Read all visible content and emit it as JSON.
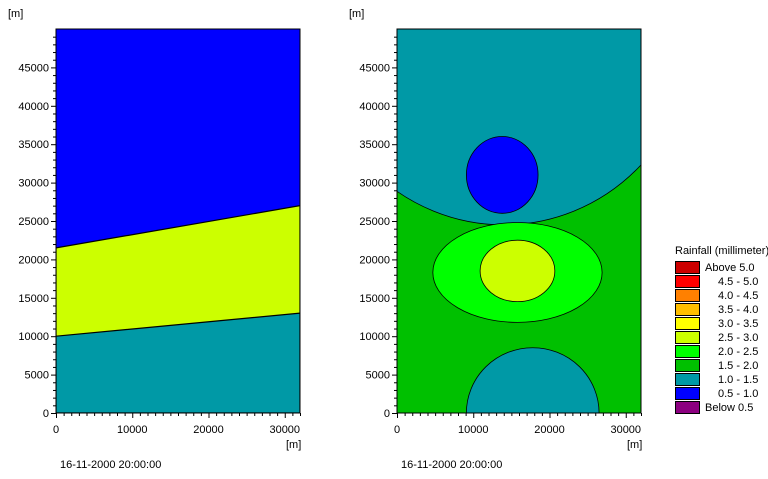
{
  "colors": {
    "above_5_0": "#cc0000",
    "4_5_5_0": "#ff0000",
    "4_0_4_5": "#ff8000",
    "3_5_4_0": "#ffbf00",
    "3_0_3_5": "#ffff00",
    "2_5_3_0": "#ccff00",
    "2_0_2_5": "#00ff00",
    "1_5_2_0": "#00c000",
    "1_0_1_5": "#0099a6",
    "0_5_1_0": "#0000ff",
    "below_0_5": "#8c0080"
  },
  "chart_data": [
    {
      "type": "contour",
      "xunit": "[m]",
      "yunit": "[m]",
      "xlim": [
        0,
        32000
      ],
      "ylim": [
        0,
        50000
      ],
      "xticks": [
        "0",
        "10000",
        "20000",
        "30000"
      ],
      "yticks": [
        "0",
        "5000",
        "10000",
        "15000",
        "20000",
        "25000",
        "30000",
        "35000",
        "40000",
        "45000"
      ],
      "timestamp": "16-11-2000 20:00:00",
      "regions": [
        {
          "class": "1.0 - 1.5",
          "y_top_at_x0": 10000,
          "y_top_at_xmax": 13000
        },
        {
          "class": "2.5 - 3.0",
          "y_top_at_x0": 21500,
          "y_top_at_xmax": 27000
        },
        {
          "class": "0.5 - 1.0",
          "y_top_at_x0": 50000,
          "y_top_at_xmax": 50000
        }
      ]
    },
    {
      "type": "contour",
      "xunit": "[m]",
      "yunit": "[m]",
      "xlim": [
        0,
        32000
      ],
      "ylim": [
        0,
        50000
      ],
      "xticks": [
        "0",
        "10000",
        "20000",
        "30000"
      ],
      "yticks": [
        "0",
        "5000",
        "10000",
        "15000",
        "20000",
        "25000",
        "30000",
        "35000",
        "40000",
        "45000"
      ],
      "timestamp": "16-11-2000 20:00:00",
      "background_class": "1.5 - 2.0",
      "regions": [
        {
          "class": "1.0 - 1.5",
          "shape": "top-bowl",
          "cx": 14000,
          "cy": 50000,
          "rx": 25000,
          "ry": 25500
        },
        {
          "class": "0.5 - 1.0",
          "shape": "ellipse",
          "cx": 13800,
          "cy": 31000,
          "rx": 4700,
          "ry": 5000
        },
        {
          "class": "2.0 - 2.5",
          "shape": "ellipse",
          "cx": 15800,
          "cy": 18300,
          "rx": 11100,
          "ry": 6500
        },
        {
          "class": "2.5 - 3.0",
          "shape": "ellipse",
          "cx": 15800,
          "cy": 18500,
          "rx": 4900,
          "ry": 4000
        },
        {
          "class": "1.0 - 1.5",
          "shape": "bottom-dome",
          "cx": 17800,
          "cy": 0,
          "rx": 8700,
          "ry": 8500
        }
      ]
    }
  ],
  "legend": {
    "title": "Rainfall (millimeter)",
    "items": [
      {
        "label": "Above 5.0",
        "color_key": "above_5_0"
      },
      {
        "label": "4.5 - 5.0",
        "color_key": "4_5_5_0"
      },
      {
        "label": "4.0 - 4.5",
        "color_key": "4_0_4_5"
      },
      {
        "label": "3.5 - 4.0",
        "color_key": "3_5_4_0"
      },
      {
        "label": "3.0 - 3.5",
        "color_key": "3_0_3_5"
      },
      {
        "label": "2.5 - 3.0",
        "color_key": "2_5_3_0"
      },
      {
        "label": "2.0 - 2.5",
        "color_key": "2_0_2_5"
      },
      {
        "label": "1.5 - 2.0",
        "color_key": "1_5_2_0"
      },
      {
        "label": "1.0 - 1.5",
        "color_key": "1_0_1_5"
      },
      {
        "label": "0.5 - 1.0",
        "color_key": "0_5_1_0"
      },
      {
        "label": "Below  0.5",
        "color_key": "below_0_5"
      }
    ]
  }
}
